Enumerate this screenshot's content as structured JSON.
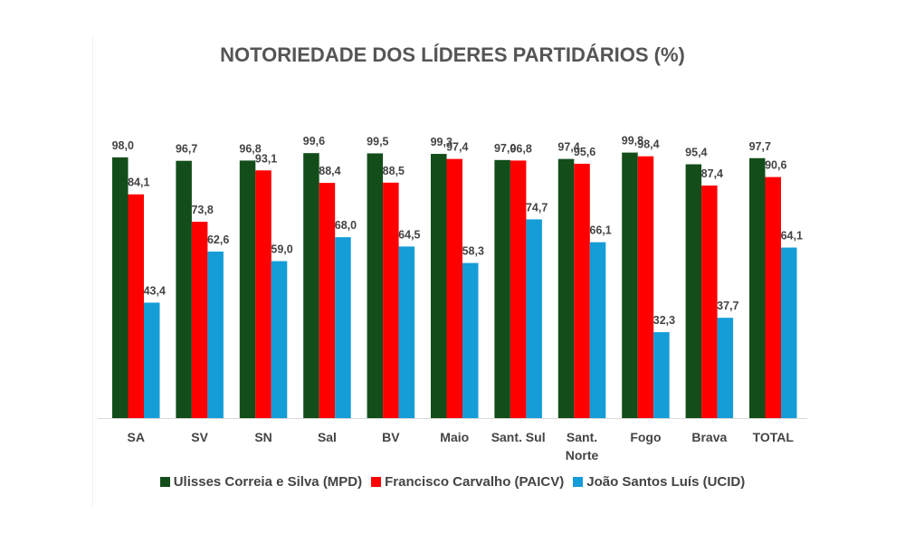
{
  "chart_data": {
    "type": "bar",
    "title": "NOTORIEDADE DOS LÍDERES PARTIDÁRIOS (%)",
    "xlabel": "",
    "ylabel": "",
    "ylim": [
      0,
      100
    ],
    "grid": false,
    "legend_position": "bottom",
    "categories": [
      "SA",
      "SV",
      "SN",
      "Sal",
      "BV",
      "Maio",
      "Sant. Sul",
      "Sant. Norte",
      "Fogo",
      "Brava",
      "TOTAL"
    ],
    "series": [
      {
        "name": "Ulisses Correia e Silva (MPD)",
        "color": "#134d1a",
        "values": [
          98.0,
          96.7,
          96.8,
          99.6,
          99.5,
          99.3,
          97.0,
          97.4,
          99.8,
          95.4,
          97.7
        ],
        "labels": [
          "98,0",
          "96,7",
          "96,8",
          "99,6",
          "99,5",
          "99,3",
          "97,0",
          "97,4",
          "99,8",
          "95,4",
          "97,7"
        ]
      },
      {
        "name": "Francisco Carvalho (PAICV)",
        "color": "#ff0000",
        "values": [
          84.1,
          73.8,
          93.1,
          88.4,
          88.5,
          97.4,
          96.8,
          95.6,
          98.4,
          87.4,
          90.6
        ],
        "labels": [
          "84,1",
          "73,8",
          "93,1",
          "88,4",
          "88,5",
          "97,4",
          "96,8",
          "95,6",
          "98,4",
          "87,4",
          "90,6"
        ]
      },
      {
        "name": "João Santos Luís (UCID)",
        "color": "#159dd8",
        "values": [
          43.4,
          62.6,
          59.0,
          68.0,
          64.5,
          58.3,
          74.7,
          66.1,
          32.3,
          37.7,
          64.1
        ],
        "labels": [
          "43,4",
          "62,6",
          "59,0",
          "68,0",
          "64,5",
          "58,3",
          "74,7",
          "66,1",
          "32,3",
          "37,7",
          "64,1"
        ]
      }
    ]
  }
}
